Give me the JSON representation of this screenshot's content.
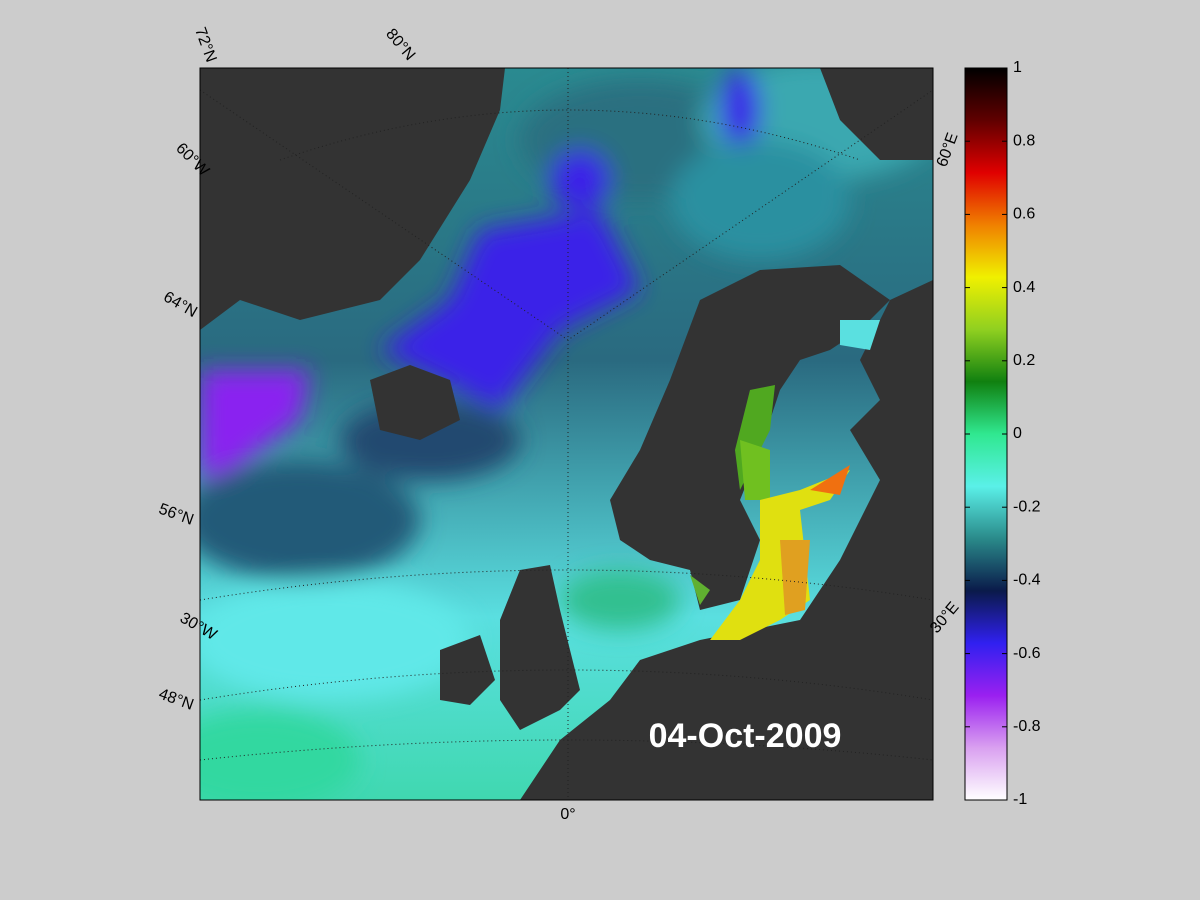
{
  "map": {
    "date_label": "04-Oct-2009",
    "graticule_labels": [
      "72°N",
      "80°N",
      "60°W",
      "64°N",
      "56°N",
      "30°W",
      "48°N",
      "0°",
      "30°E",
      "60°E"
    ]
  },
  "colorbar": {
    "clim": [
      -1,
      1
    ],
    "ticks": [
      1,
      0.8,
      0.6,
      0.4,
      0.2,
      0,
      -0.2,
      -0.4,
      -0.6,
      -0.8,
      -1
    ],
    "colormap": [
      "#ffffff",
      "#d9a0f0",
      "#9a20f0",
      "#3020f0",
      "#0a1a4a",
      "#2a8a8a",
      "#5af0e8",
      "#30e890",
      "#108010",
      "#90d020",
      "#f0f000",
      "#f08000",
      "#e00000",
      "#600000",
      "#000000"
    ]
  }
}
